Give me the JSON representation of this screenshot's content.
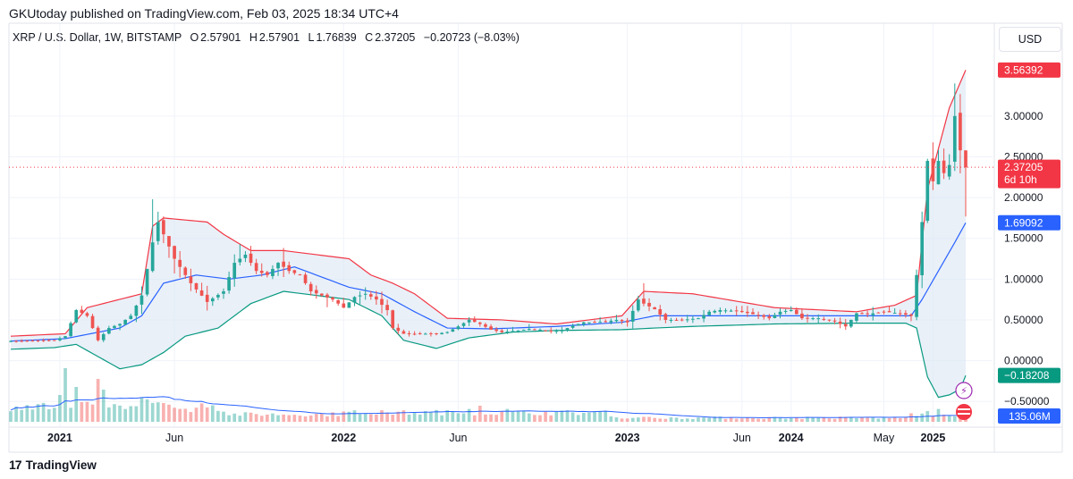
{
  "publisher_line": "GKUtoday published on TradingView.com, Feb 03, 2025 18:34 UTC+4",
  "legend": {
    "symbol": "XRP / U.S. Dollar, 1W, BITSTAMP",
    "open_label": "O",
    "open": "2.57901",
    "high_label": "H",
    "high": "2.57901",
    "low_label": "L",
    "low": "1.76839",
    "close_label": "C",
    "close": "2.37205",
    "change": "−0.20723 (−8.03%)"
  },
  "currency_button": "USD",
  "footer_brand": "TradingView",
  "colors": {
    "up": "#26a69a",
    "down": "#ef5350",
    "bb_upper": "#f23645",
    "bb_basis": "#2962ff",
    "bb_lower": "#089981",
    "bb_fill": "#d7e4f2",
    "volume_ma": "#2962ff",
    "price_tag": "#f23645",
    "basis_tag": "#2962ff",
    "lower_tag": "#089981"
  },
  "chart_data": {
    "type": "candlestick",
    "timeframe": "1W",
    "x_tick_labels": [
      "2021",
      "Jun",
      "2022",
      "Jun",
      "2023",
      "Jun",
      "2024",
      "May",
      "2025"
    ],
    "y_tick_labels": [
      "3.00000",
      "2.50000",
      "2.00000",
      "1.50000",
      "1.00000",
      "0.50000",
      "0.00000",
      "−0.50000"
    ],
    "y_ticks": [
      3.0,
      2.5,
      2.0,
      1.5,
      1.0,
      0.5,
      0.0,
      -0.5
    ],
    "ylim": [
      -0.75,
      3.7
    ],
    "price_labels": [
      {
        "name": "bb-upper",
        "value": 3.56392,
        "text": "3.56392"
      },
      {
        "name": "last-price",
        "value": 2.37205,
        "text": "2.37205",
        "countdown": "6d 10h"
      },
      {
        "name": "bb-basis",
        "value": 1.69092,
        "text": "1.69092"
      },
      {
        "name": "bb-lower",
        "value": -0.18208,
        "text": "−0.18208"
      }
    ],
    "volume_label": "135.06M",
    "weekly_close_anchors": [
      [
        0,
        0.24
      ],
      [
        8,
        0.25
      ],
      [
        10,
        0.3
      ],
      [
        12,
        0.62
      ],
      [
        14,
        0.55
      ],
      [
        16,
        0.25
      ],
      [
        18,
        0.4
      ],
      [
        20,
        0.45
      ],
      [
        22,
        0.55
      ],
      [
        24,
        0.8
      ],
      [
        26,
        1.45
      ],
      [
        27,
        1.7
      ],
      [
        28,
        1.55
      ],
      [
        30,
        1.25
      ],
      [
        33,
        0.95
      ],
      [
        36,
        0.72
      ],
      [
        39,
        0.85
      ],
      [
        41,
        1.2
      ],
      [
        43,
        1.3
      ],
      [
        45,
        1.1
      ],
      [
        47,
        1.05
      ],
      [
        49,
        1.2
      ],
      [
        51,
        1.1
      ],
      [
        53,
        1.05
      ],
      [
        55,
        0.85
      ],
      [
        57,
        0.8
      ],
      [
        59,
        0.75
      ],
      [
        61,
        0.65
      ],
      [
        63,
        0.78
      ],
      [
        65,
        0.82
      ],
      [
        67,
        0.75
      ],
      [
        69,
        0.62
      ],
      [
        70,
        0.4
      ],
      [
        72,
        0.33
      ],
      [
        75,
        0.33
      ],
      [
        78,
        0.33
      ],
      [
        80,
        0.35
      ],
      [
        82,
        0.42
      ],
      [
        84,
        0.5
      ],
      [
        86,
        0.45
      ],
      [
        88,
        0.38
      ],
      [
        90,
        0.35
      ],
      [
        93,
        0.37
      ],
      [
        95,
        0.39
      ],
      [
        97,
        0.38
      ],
      [
        99,
        0.36
      ],
      [
        101,
        0.37
      ],
      [
        103,
        0.43
      ],
      [
        105,
        0.47
      ],
      [
        107,
        0.47
      ],
      [
        109,
        0.48
      ],
      [
        111,
        0.5
      ],
      [
        113,
        0.47
      ],
      [
        115,
        0.75
      ],
      [
        116,
        0.7
      ],
      [
        118,
        0.63
      ],
      [
        120,
        0.5
      ],
      [
        123,
        0.5
      ],
      [
        126,
        0.52
      ],
      [
        128,
        0.6
      ],
      [
        130,
        0.62
      ],
      [
        133,
        0.61
      ],
      [
        136,
        0.57
      ],
      [
        139,
        0.52
      ],
      [
        141,
        0.6
      ],
      [
        143,
        0.62
      ],
      [
        145,
        0.52
      ],
      [
        148,
        0.52
      ],
      [
        151,
        0.48
      ],
      [
        153,
        0.42
      ],
      [
        155,
        0.58
      ],
      [
        157,
        0.57
      ],
      [
        160,
        0.6
      ],
      [
        163,
        0.58
      ],
      [
        165,
        0.55
      ],
      [
        166,
        1.05
      ],
      [
        167,
        1.7
      ],
      [
        168,
        2.45
      ],
      [
        169,
        2.2
      ],
      [
        170,
        2.45
      ],
      [
        171,
        2.3
      ],
      [
        172,
        2.4
      ],
      [
        173,
        3.0
      ],
      [
        174,
        2.58
      ],
      [
        175,
        2.37
      ]
    ],
    "bollinger_anchors": {
      "upper": [
        [
          0,
          0.3
        ],
        [
          10,
          0.33
        ],
        [
          14,
          0.65
        ],
        [
          24,
          0.82
        ],
        [
          26,
          1.65
        ],
        [
          28,
          1.75
        ],
        [
          36,
          1.7
        ],
        [
          39,
          1.55
        ],
        [
          44,
          1.35
        ],
        [
          50,
          1.35
        ],
        [
          56,
          1.3
        ],
        [
          62,
          1.25
        ],
        [
          66,
          1.05
        ],
        [
          70,
          0.95
        ],
        [
          74,
          0.82
        ],
        [
          80,
          0.52
        ],
        [
          90,
          0.5
        ],
        [
          100,
          0.45
        ],
        [
          112,
          0.55
        ],
        [
          116,
          0.85
        ],
        [
          125,
          0.82
        ],
        [
          140,
          0.65
        ],
        [
          155,
          0.6
        ],
        [
          162,
          0.68
        ],
        [
          166,
          0.8
        ],
        [
          168,
          2.1
        ],
        [
          172,
          3.1
        ],
        [
          175,
          3.56392
        ]
      ],
      "basis": [
        [
          0,
          0.24
        ],
        [
          10,
          0.27
        ],
        [
          20,
          0.4
        ],
        [
          24,
          0.55
        ],
        [
          28,
          0.95
        ],
        [
          34,
          1.05
        ],
        [
          40,
          1.0
        ],
        [
          46,
          1.05
        ],
        [
          52,
          1.15
        ],
        [
          56,
          1.05
        ],
        [
          62,
          0.9
        ],
        [
          68,
          0.82
        ],
        [
          74,
          0.6
        ],
        [
          80,
          0.4
        ],
        [
          88,
          0.39
        ],
        [
          100,
          0.42
        ],
        [
          112,
          0.47
        ],
        [
          118,
          0.55
        ],
        [
          130,
          0.55
        ],
        [
          150,
          0.55
        ],
        [
          160,
          0.55
        ],
        [
          165,
          0.55
        ],
        [
          167,
          0.75
        ],
        [
          170,
          1.1
        ],
        [
          173,
          1.45
        ],
        [
          175,
          1.69092
        ]
      ],
      "lower": [
        [
          0,
          0.14
        ],
        [
          8,
          0.16
        ],
        [
          12,
          0.2
        ],
        [
          20,
          -0.1
        ],
        [
          24,
          -0.05
        ],
        [
          28,
          0.1
        ],
        [
          32,
          0.3
        ],
        [
          38,
          0.4
        ],
        [
          44,
          0.7
        ],
        [
          50,
          0.85
        ],
        [
          56,
          0.8
        ],
        [
          62,
          0.75
        ],
        [
          68,
          0.55
        ],
        [
          72,
          0.25
        ],
        [
          78,
          0.15
        ],
        [
          84,
          0.28
        ],
        [
          92,
          0.35
        ],
        [
          100,
          0.37
        ],
        [
          112,
          0.38
        ],
        [
          118,
          0.4
        ],
        [
          125,
          0.42
        ],
        [
          140,
          0.45
        ],
        [
          155,
          0.46
        ],
        [
          164,
          0.46
        ],
        [
          166,
          0.4
        ],
        [
          168,
          -0.2
        ],
        [
          170,
          -0.45
        ],
        [
          172,
          -0.42
        ],
        [
          174,
          -0.35
        ],
        [
          175,
          -0.18208
        ]
      ]
    },
    "volume_spikes": [
      {
        "week": 9,
        "relative_volume": 0.5
      },
      {
        "week": 10,
        "relative_volume": 1.0
      },
      {
        "week": 12,
        "relative_volume": 0.65
      },
      {
        "week": 16,
        "relative_volume": 0.8
      },
      {
        "week": 17,
        "relative_volume": 0.6
      },
      {
        "week": 24,
        "relative_volume": 0.45
      },
      {
        "week": 25,
        "relative_volume": 0.42
      },
      {
        "week": 28,
        "relative_volume": 0.35
      },
      {
        "week": 78,
        "relative_volume": 0.22
      },
      {
        "week": 84,
        "relative_volume": 0.24
      },
      {
        "week": 86,
        "relative_volume": 0.3
      },
      {
        "week": 91,
        "relative_volume": 0.24
      },
      {
        "week": 168,
        "relative_volume": 0.2
      },
      {
        "week": 170,
        "relative_volume": 0.24
      }
    ]
  }
}
